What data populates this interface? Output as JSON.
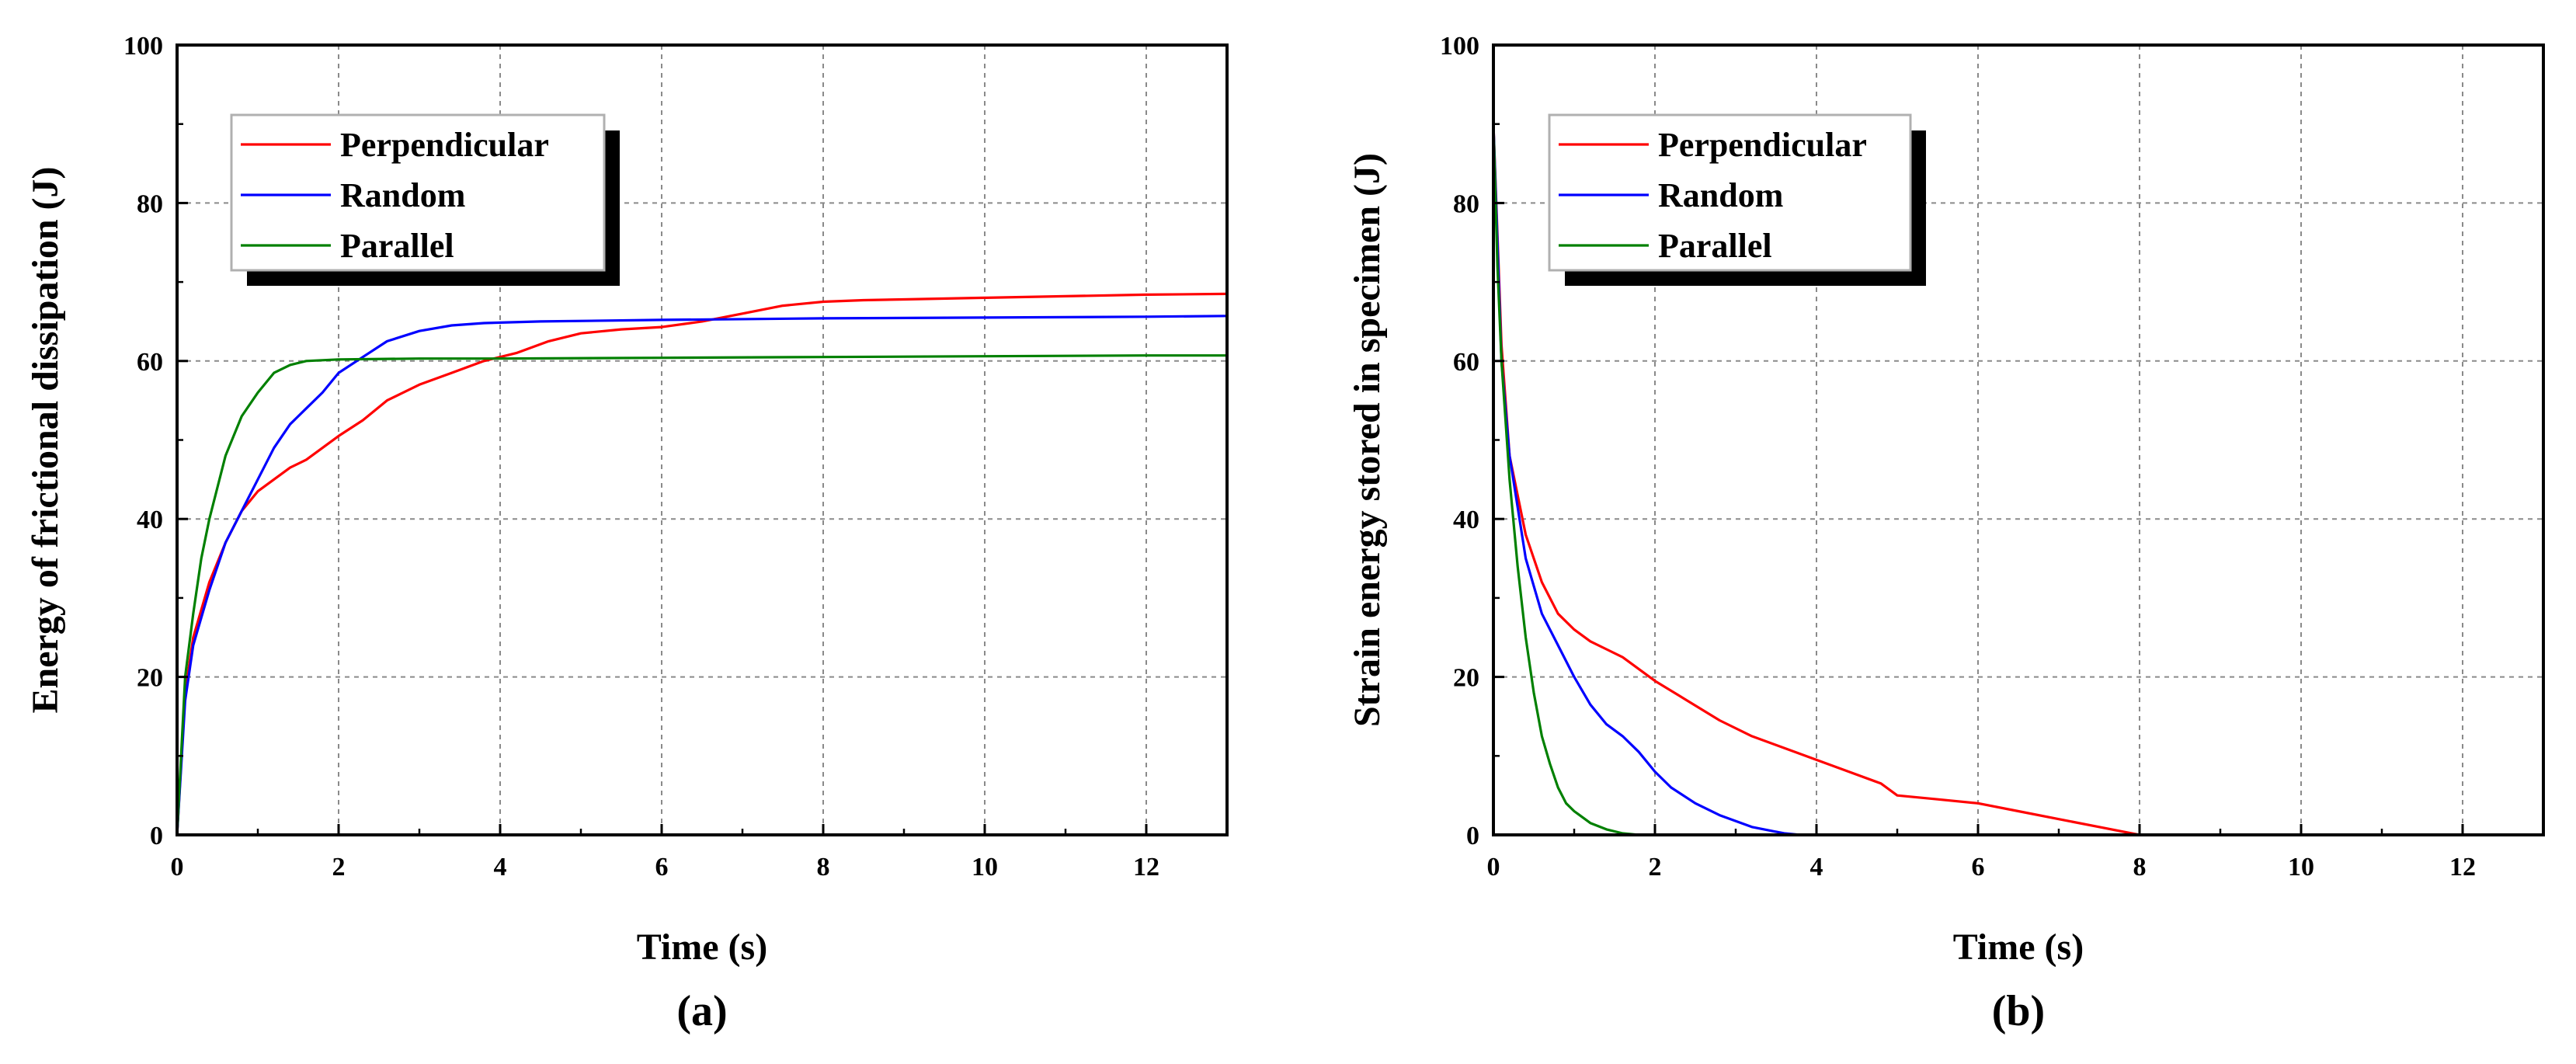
{
  "chart_data": [
    {
      "type": "line",
      "panel_label": "(a)",
      "title": "",
      "xlabel": "Time (s)",
      "ylabel": "Energy of frictional dissipation (J)",
      "xlim": [
        0,
        13
      ],
      "ylim": [
        0,
        100
      ],
      "xticks": [
        0,
        2,
        4,
        6,
        8,
        10,
        12
      ],
      "yticks": [
        0,
        20,
        40,
        60,
        80,
        100
      ],
      "grid": true,
      "legend_position": "top-left",
      "series": [
        {
          "name": "Perpendicular",
          "color": "#ff0000",
          "x": [
            0,
            0.1,
            0.2,
            0.4,
            0.6,
            0.8,
            1.0,
            1.2,
            1.4,
            1.6,
            1.8,
            2.0,
            2.3,
            2.6,
            3.0,
            3.4,
            3.8,
            4.2,
            4.6,
            5.0,
            5.5,
            6.0,
            6.5,
            7.0,
            7.5,
            8.0,
            8.5,
            9.0,
            10.0,
            11.0,
            12.0,
            13.0
          ],
          "y": [
            0,
            18,
            25,
            32,
            37,
            41,
            43.5,
            45,
            46.5,
            47.5,
            49,
            50.5,
            52.5,
            55,
            57,
            58.5,
            60,
            61,
            62.5,
            63.5,
            64,
            64.3,
            65,
            66,
            67,
            67.5,
            67.7,
            67.8,
            68,
            68.2,
            68.4,
            68.5
          ]
        },
        {
          "name": "Random",
          "color": "#0000ff",
          "x": [
            0,
            0.1,
            0.2,
            0.4,
            0.6,
            0.8,
            1.0,
            1.2,
            1.4,
            1.6,
            1.8,
            2.0,
            2.3,
            2.6,
            3.0,
            3.4,
            3.8,
            4.5,
            6.0,
            8.0,
            10.0,
            12.0,
            13.0
          ],
          "y": [
            0,
            17,
            24,
            31,
            37,
            41,
            45,
            49,
            52,
            54,
            56,
            58.5,
            60.5,
            62.5,
            63.8,
            64.5,
            64.8,
            65,
            65.2,
            65.4,
            65.5,
            65.6,
            65.7
          ]
        },
        {
          "name": "Parallel",
          "color": "#008000",
          "x": [
            0,
            0.1,
            0.2,
            0.3,
            0.4,
            0.5,
            0.6,
            0.8,
            1.0,
            1.2,
            1.4,
            1.6,
            1.8,
            2.0,
            3.0,
            4.0,
            6.0,
            8.0,
            10.0,
            12.0,
            13.0
          ],
          "y": [
            0,
            20,
            28,
            35,
            40,
            44,
            48,
            53,
            56,
            58.5,
            59.5,
            60,
            60.1,
            60.2,
            60.3,
            60.3,
            60.4,
            60.5,
            60.6,
            60.7,
            60.7
          ]
        }
      ]
    },
    {
      "type": "line",
      "panel_label": "(b)",
      "title": "",
      "xlabel": "Time (s)",
      "ylabel": "Strain energy stored in specimen (J)",
      "xlim": [
        0,
        13
      ],
      "ylim": [
        0,
        100
      ],
      "xticks": [
        0,
        2,
        4,
        6,
        8,
        10,
        12
      ],
      "yticks": [
        0,
        20,
        40,
        60,
        80,
        100
      ],
      "grid": true,
      "legend_position": "top-left",
      "series": [
        {
          "name": "Perpendicular",
          "color": "#ff0000",
          "x": [
            0,
            0.1,
            0.2,
            0.4,
            0.6,
            0.8,
            1.0,
            1.2,
            1.4,
            1.6,
            1.8,
            2.0,
            2.4,
            2.8,
            3.2,
            3.6,
            4.0,
            4.4,
            4.8,
            5.0,
            5.5,
            6.0,
            6.5,
            7.0,
            7.5,
            8.0,
            13.0
          ],
          "y": [
            90,
            62,
            48,
            38,
            32,
            28,
            26,
            24.5,
            23.5,
            22.5,
            21,
            19.5,
            17,
            14.5,
            12.5,
            11,
            9.5,
            8,
            6.5,
            5,
            4.5,
            4,
            3,
            2,
            1,
            0,
            0
          ]
        },
        {
          "name": "Random",
          "color": "#0000ff",
          "x": [
            0,
            0.1,
            0.2,
            0.4,
            0.6,
            0.8,
            1.0,
            1.2,
            1.4,
            1.6,
            1.8,
            2.0,
            2.2,
            2.5,
            2.8,
            3.2,
            3.6,
            3.8,
            4.0,
            13.0
          ],
          "y": [
            90,
            60,
            48,
            35,
            28,
            24,
            20,
            16.5,
            14,
            12.5,
            10.5,
            8,
            6,
            4,
            2.5,
            1,
            0.2,
            0,
            0,
            0
          ]
        },
        {
          "name": "Parallel",
          "color": "#008000",
          "x": [
            0,
            0.05,
            0.1,
            0.2,
            0.3,
            0.4,
            0.5,
            0.6,
            0.7,
            0.8,
            0.9,
            1.0,
            1.2,
            1.4,
            1.6,
            1.8,
            2.0,
            13.0
          ],
          "y": [
            90,
            72,
            60,
            45,
            34,
            25,
            18,
            12.5,
            9,
            6,
            4,
            3,
            1.5,
            0.7,
            0.2,
            0,
            0,
            0
          ]
        }
      ]
    }
  ]
}
